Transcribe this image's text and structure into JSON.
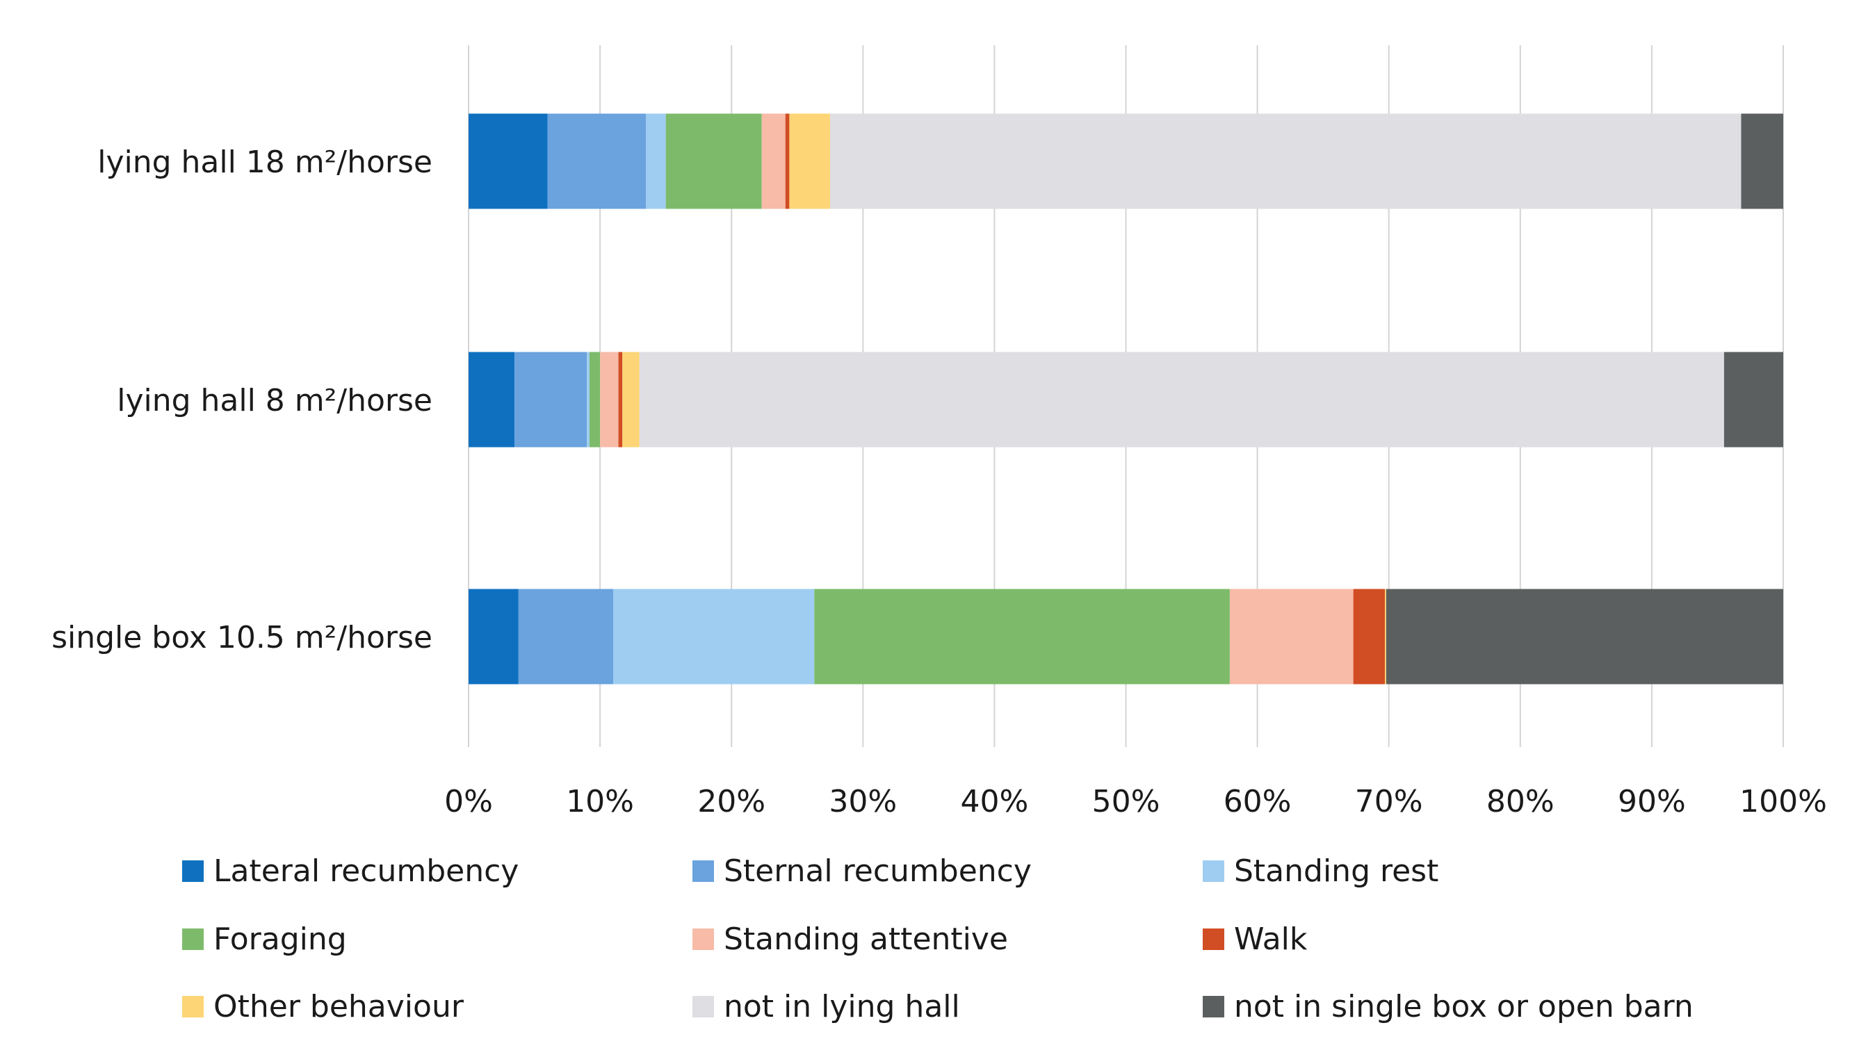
{
  "chart_data": {
    "type": "bar",
    "orientation": "horizontal",
    "stacked": "percent",
    "title": "",
    "xlabel": "",
    "ylabel": "",
    "xlim": [
      0,
      100
    ],
    "grid": true,
    "legend_position": "bottom",
    "x_ticks": [
      "0%",
      "10%",
      "20%",
      "30%",
      "40%",
      "50%",
      "60%",
      "70%",
      "80%",
      "90%",
      "100%"
    ],
    "categories": [
      "lying hall 18 m²/horse",
      "lying hall 8 m²/horse",
      "single box 10.5 m²/horse"
    ],
    "series": [
      {
        "name": "Lateral recumbency",
        "color": "#0f70c0",
        "values": [
          6.0,
          3.5,
          3.8
        ]
      },
      {
        "name": "Sternal recumbency",
        "color": "#6aa3de",
        "values": [
          7.5,
          5.5,
          7.2
        ]
      },
      {
        "name": "Standing rest",
        "color": "#9fcdf1",
        "values": [
          1.5,
          0.2,
          15.3
        ]
      },
      {
        "name": "Foraging",
        "color": "#7dbb6b",
        "values": [
          7.3,
          0.8,
          31.6
        ]
      },
      {
        "name": "Standing attentive",
        "color": "#f7bba8",
        "values": [
          1.8,
          1.4,
          9.4
        ]
      },
      {
        "name": "Walk",
        "color": "#d14d24",
        "values": [
          0.3,
          0.3,
          2.4
        ]
      },
      {
        "name": "Other behaviour",
        "color": "#fdd576",
        "values": [
          3.1,
          1.3,
          0.1
        ]
      },
      {
        "name": "not in lying hall",
        "color": "#dedee3",
        "values": [
          69.3,
          82.5,
          0.0
        ]
      },
      {
        "name": "not in single box or open barn",
        "color": "#5c5f5f",
        "values": [
          3.2,
          4.5,
          30.2
        ]
      }
    ]
  }
}
